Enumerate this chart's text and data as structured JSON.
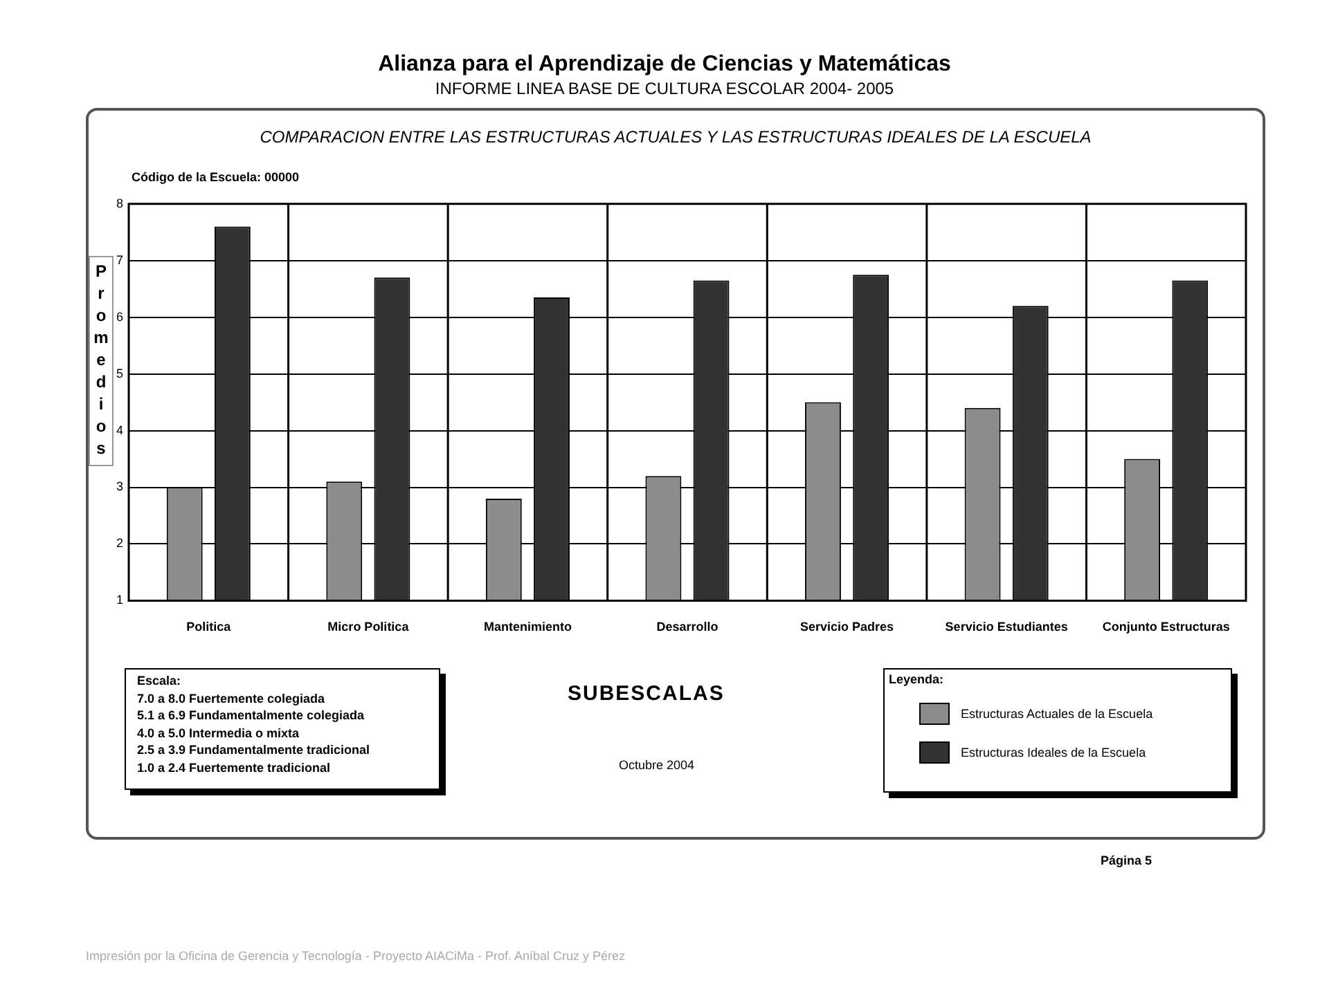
{
  "chart_data": {
    "type": "bar",
    "title": "COMPARACION ENTRE LAS ESTRUCTURAS ACTUALES Y LAS ESTRUCTURAS IDEALES DE LA ESCUELA",
    "xlabel": "SUBESCALAS",
    "ylabel": "Promedios",
    "legend_title": "Leyenda:",
    "categories": [
      "Politica",
      "Micro Politica",
      "Mantenimiento",
      "Desarrollo",
      "Servicio Padres",
      "Servicio Estudiantes",
      "Conjunto Estructuras"
    ],
    "series": [
      {
        "name": "Estructuras Actuales de la Escuela",
        "color": "#8c8c8c",
        "values": [
          3.0,
          3.1,
          2.8,
          3.2,
          4.5,
          4.4,
          3.5
        ]
      },
      {
        "name": "Estructuras Ideales de la Escuela",
        "color": "#333333",
        "values": [
          7.6,
          6.7,
          6.35,
          6.65,
          6.75,
          6.2,
          6.65
        ]
      }
    ],
    "ylim": [
      1,
      8
    ],
    "yticks": [
      1,
      2,
      3,
      4,
      5,
      6,
      7,
      8
    ],
    "grid": "y",
    "legend": "bottom right",
    "annotations": [
      "Alianza para el Aprendizaje de Ciencias y Matemáticas",
      "INFORME LINEA BASE DE CULTURA ESCOLAR 2004- 2005",
      "Código de la Escuela: 00000",
      "Escala:",
      "7.0 a 8.0 Fuertemente colegiada",
      "5.1 a 6.9 Fundamentalmente colegiada",
      "4.0 a 5.0 Intermedia o mixta",
      "2.5 a 3.9 Fundamentalmente tradicional",
      "1.0 a 2.4 Fuertemente tradicional",
      "Octubre 2004",
      "Página 5",
      "Impresión por la Oficina de Gerencia y Tecnología - Proyecto AIACiMa - Prof. Aníbal Cruz y Pérez"
    ]
  }
}
